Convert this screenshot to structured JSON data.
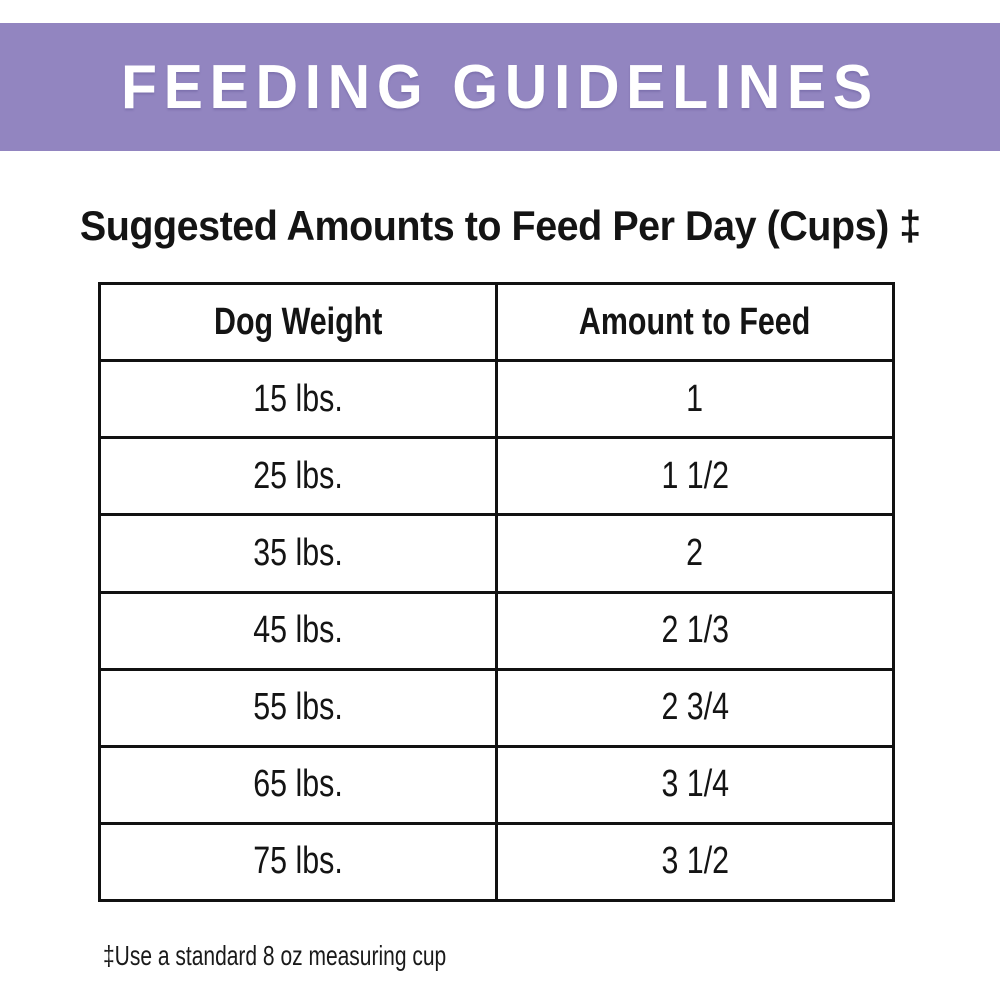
{
  "banner": {
    "title": "FEEDING GUIDELINES",
    "background_color": "#9285C0",
    "text_color": "#FFFFFF"
  },
  "heading": {
    "text": "Suggested Amounts to Feed Per Day (Cups) ‡"
  },
  "table": {
    "columns": [
      "Dog Weight",
      "Amount to Feed"
    ],
    "rows": [
      {
        "weight": "15 lbs.",
        "amount": "1"
      },
      {
        "weight": "25 lbs.",
        "amount": "1 1/2"
      },
      {
        "weight": "35 lbs.",
        "amount": "2"
      },
      {
        "weight": "45 lbs.",
        "amount": "2 1/3"
      },
      {
        "weight": "55 lbs.",
        "amount": "2 3/4"
      },
      {
        "weight": "65 lbs.",
        "amount": "3 1/4"
      },
      {
        "weight": "75 lbs.",
        "amount": "3 1/2"
      }
    ],
    "border_color": "#111111",
    "text_color": "#141414"
  },
  "footnote": {
    "text": "‡Use a standard 8 oz measuring cup"
  }
}
